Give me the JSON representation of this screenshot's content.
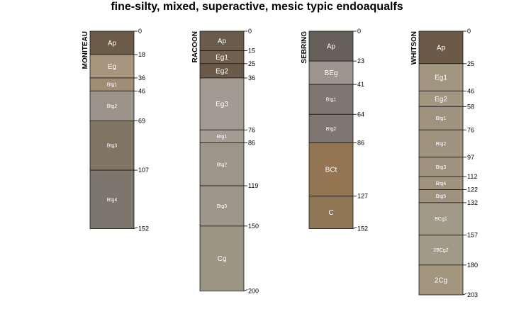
{
  "title": "fine-silty, mixed, superactive, mesic typic endoaqualfs",
  "profiles": [
    {
      "name": "MONITEAU",
      "horizons": [
        {
          "name": "Ap",
          "top": 0,
          "bottom": 18,
          "color": "#6b5b48"
        },
        {
          "name": "Eg",
          "top": 18,
          "bottom": 36,
          "color": "#a8957e"
        },
        {
          "name": "Btg1",
          "top": 36,
          "bottom": 46,
          "color": "#a08d76"
        },
        {
          "name": "Btg2",
          "top": 46,
          "bottom": 69,
          "color": "#9c948a"
        },
        {
          "name": "Btg3",
          "top": 69,
          "bottom": 107,
          "color": "#807563"
        },
        {
          "name": "Btg4",
          "top": 107,
          "bottom": 152,
          "color": "#7c766d"
        }
      ]
    },
    {
      "name": "RACOON",
      "horizons": [
        {
          "name": "Ap",
          "top": 0,
          "bottom": 15,
          "color": "#6a5b4b"
        },
        {
          "name": "Eg1",
          "top": 15,
          "bottom": 25,
          "color": "#6f604f"
        },
        {
          "name": "Eg2",
          "top": 25,
          "bottom": 36,
          "color": "#695a4a"
        },
        {
          "name": "Eg3",
          "top": 36,
          "bottom": 76,
          "color": "#a19a90"
        },
        {
          "name": "Btg1",
          "top": 76,
          "bottom": 86,
          "color": "#a39c92"
        },
        {
          "name": "Btg2",
          "top": 86,
          "bottom": 119,
          "color": "#9d9589"
        },
        {
          "name": "Btg3",
          "top": 119,
          "bottom": 150,
          "color": "#9d9589"
        },
        {
          "name": "Cg",
          "top": 150,
          "bottom": 200,
          "color": "#9b9584"
        }
      ]
    },
    {
      "name": "SEBRING",
      "horizons": [
        {
          "name": "Ap",
          "top": 0,
          "bottom": 23,
          "color": "#66605a"
        },
        {
          "name": "BEg",
          "top": 23,
          "bottom": 41,
          "color": "#9c958e"
        },
        {
          "name": "Btg1",
          "top": 41,
          "bottom": 64,
          "color": "#7e7670"
        },
        {
          "name": "Btg2",
          "top": 64,
          "bottom": 86,
          "color": "#7e7670"
        },
        {
          "name": "BCt",
          "top": 86,
          "bottom": 127,
          "color": "#937553"
        },
        {
          "name": "C",
          "top": 127,
          "bottom": 152,
          "color": "#8e7553"
        }
      ]
    },
    {
      "name": "WHITSON",
      "horizons": [
        {
          "name": "Ap",
          "top": 0,
          "bottom": 25,
          "color": "#6c5a49"
        },
        {
          "name": "Eg1",
          "top": 25,
          "bottom": 46,
          "color": "#a29680"
        },
        {
          "name": "Eg2",
          "top": 46,
          "bottom": 58,
          "color": "#a29680"
        },
        {
          "name": "Btg1",
          "top": 58,
          "bottom": 76,
          "color": "#9f937f"
        },
        {
          "name": "Btg2",
          "top": 76,
          "bottom": 97,
          "color": "#9f937f"
        },
        {
          "name": "Btg3",
          "top": 97,
          "bottom": 112,
          "color": "#9f937f"
        },
        {
          "name": "Btg4",
          "top": 112,
          "bottom": 122,
          "color": "#9f937f"
        },
        {
          "name": "Btg5",
          "top": 122,
          "bottom": 132,
          "color": "#9f937f"
        },
        {
          "name": "BCg1",
          "top": 132,
          "bottom": 157,
          "color": "#a29a88"
        },
        {
          "name": "2BCg2",
          "top": 157,
          "bottom": 180,
          "color": "#a29a88"
        },
        {
          "name": "2Cg",
          "top": 180,
          "bottom": 203,
          "color": "#a2967f"
        }
      ]
    }
  ]
}
